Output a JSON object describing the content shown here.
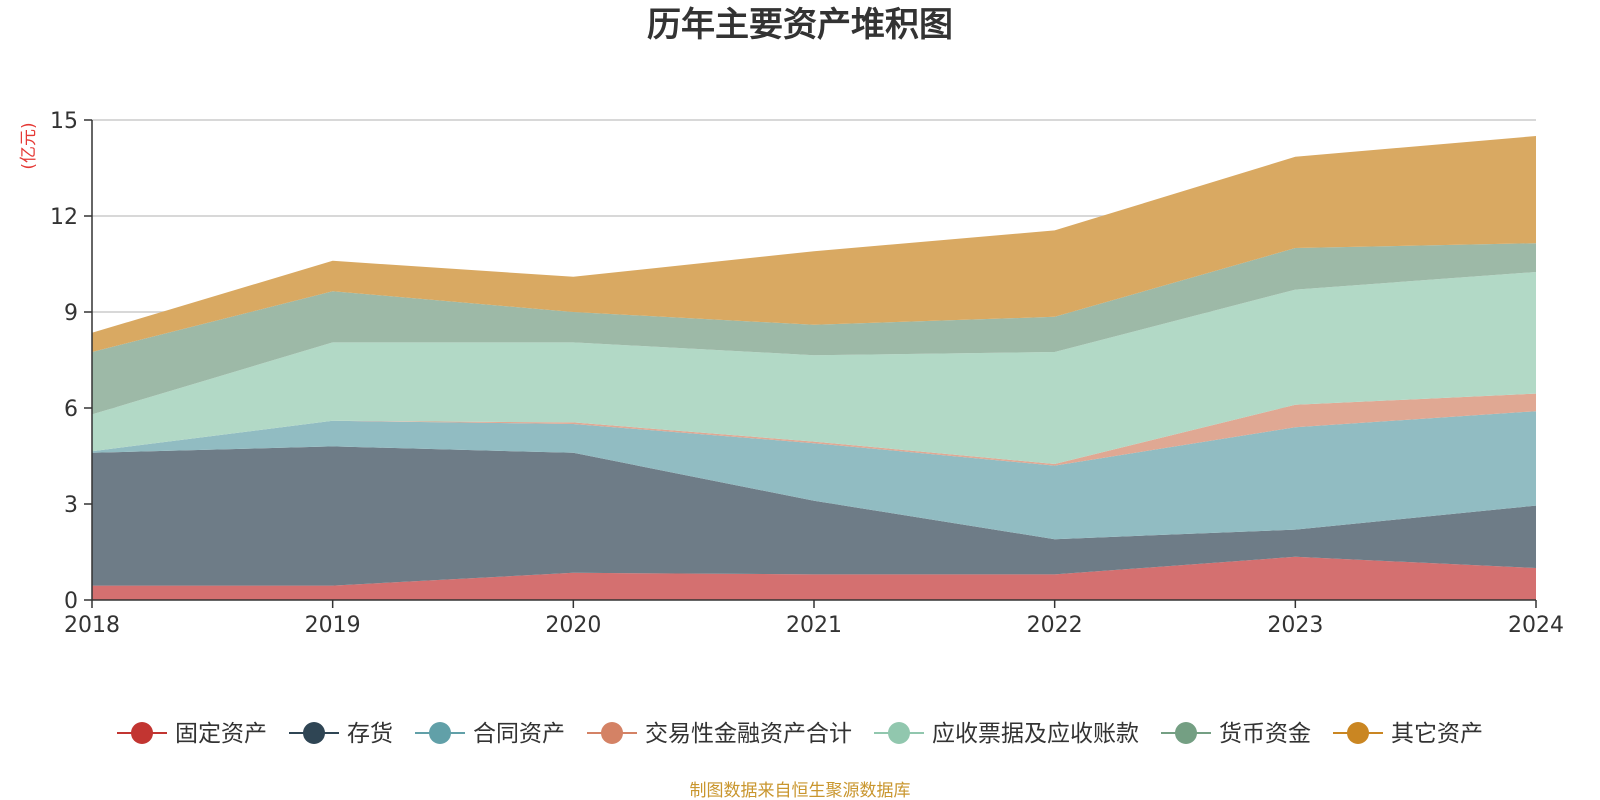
{
  "chart_data": {
    "type": "area",
    "stacked": true,
    "title": "历年主要资产堆积图",
    "unit_label": "(亿元)",
    "x": [
      "2018",
      "2019",
      "2020",
      "2021",
      "2022",
      "2023",
      "2024"
    ],
    "ylim": [
      0,
      15
    ],
    "yticks": [
      "0",
      "3",
      "6",
      "9",
      "12",
      "15"
    ],
    "grid": true,
    "legend_position": "bottom",
    "series": [
      {
        "name": "固定资产",
        "color": "#c23531",
        "fill": "#d47070",
        "values": [
          0.45,
          0.45,
          0.85,
          0.8,
          0.8,
          1.35,
          1.0
        ]
      },
      {
        "name": "存货",
        "color": "#2f4554",
        "fill": "#6e7c87",
        "values": [
          4.15,
          4.35,
          3.75,
          2.3,
          1.1,
          0.85,
          1.95
        ]
      },
      {
        "name": "合同资产",
        "color": "#61a0a8",
        "fill": "#91bcc2",
        "values": [
          0.05,
          0.8,
          0.9,
          1.8,
          2.3,
          3.2,
          2.95
        ]
      },
      {
        "name": "交易性金融资产合计",
        "color": "#d48265",
        "fill": "#e0a893",
        "values": [
          0.0,
          0.0,
          0.05,
          0.05,
          0.05,
          0.7,
          0.55
        ]
      },
      {
        "name": "应收票据及应收账款",
        "color": "#91c7ae",
        "fill": "#b2d9c6",
        "values": [
          1.15,
          2.45,
          2.5,
          2.7,
          3.5,
          3.6,
          3.8
        ]
      },
      {
        "name": "货币资金",
        "color": "#749f83",
        "fill": "#9db9a7",
        "values": [
          1.95,
          1.6,
          0.95,
          0.95,
          1.1,
          1.3,
          0.9
        ]
      },
      {
        "name": "其它资产",
        "color": "#ca8622",
        "fill": "#d9a962",
        "values": [
          0.6,
          0.95,
          1.1,
          2.3,
          2.7,
          2.85,
          3.35
        ]
      }
    ],
    "source": "制图数据来自恒生聚源数据库"
  }
}
